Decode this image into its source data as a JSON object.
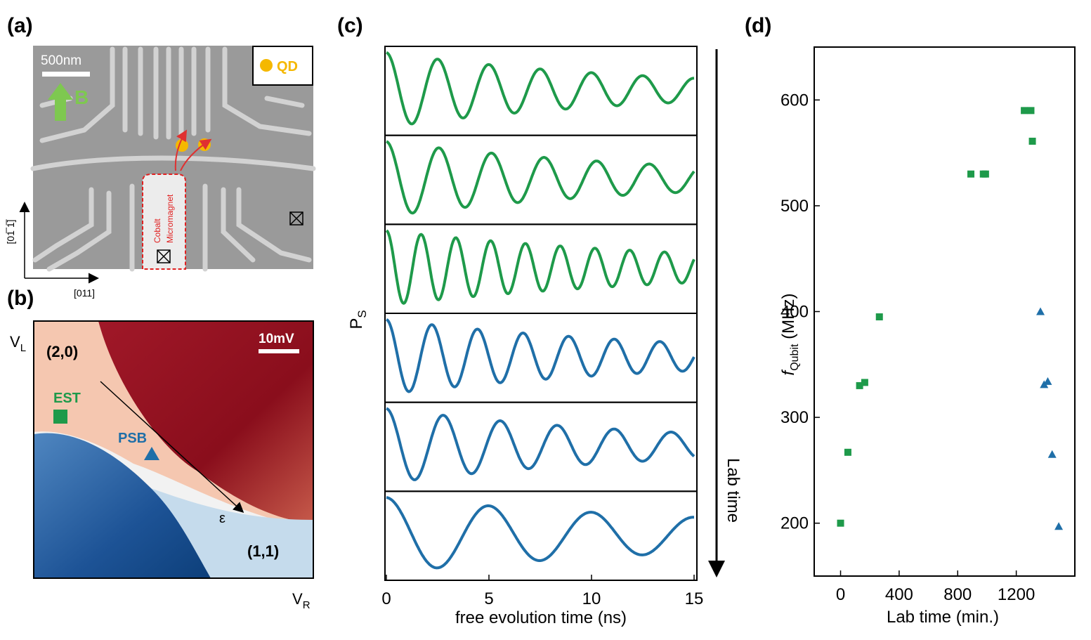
{
  "panel_labels": {
    "a": "(a)",
    "b": "(b)",
    "c": "(c)",
    "d": "(d)"
  },
  "panel_a": {
    "scale_bar": "500nm",
    "field_label": "B",
    "legend_qd": "QD",
    "magnet_label_1": "Cobalt",
    "magnet_label_2": "Micromagnet",
    "axis_vertical": "[01̅ 1̅]",
    "axis_horizontal": "[011]",
    "colors": {
      "sem_bg": "#9a9a9a",
      "gate": "#d2d2d2",
      "qd": "#f5b800",
      "arrow_green": "#7ec850",
      "magnet_outline": "#e02020"
    }
  },
  "panel_b": {
    "scale_bar": "10mV",
    "region_20": "(2,0)",
    "region_11": "(1,1)",
    "est_label": "EST",
    "psb_label": "PSB",
    "epsilon_label": "ε",
    "vl_main": "V",
    "vl_sub": "L",
    "vr_main": "V",
    "vr_sub": "R",
    "colors": {
      "dark_red": "#8c0f1e",
      "red": "#c0392b",
      "light": "#f5c7b0",
      "white": "#f2f2f2",
      "light_blue": "#c5dbec",
      "blue": "#2d6aa8",
      "dark_blue": "#0d3f7a",
      "est": "#1e9a4a",
      "psb": "#1f6fa8"
    }
  },
  "chart_data": [
    {
      "type": "line",
      "panel": "c",
      "xlabel": "free evolution time (ns)",
      "ylabel_main": "P",
      "ylabel_sub": "S",
      "side_label": "Lab time",
      "xlim": [
        0,
        15
      ],
      "xticks": [
        0,
        5,
        10,
        15
      ],
      "series": [
        {
          "color": "#1e9a4a",
          "freq_ghz": 0.4,
          "decay_ns": 13
        },
        {
          "color": "#1e9a4a",
          "freq_ghz": 0.39,
          "decay_ns": 14
        },
        {
          "color": "#1e9a4a",
          "freq_ghz": 0.59,
          "decay_ns": 16
        },
        {
          "color": "#1f6fa8",
          "freq_ghz": 0.45,
          "decay_ns": 15
        },
        {
          "color": "#1f6fa8",
          "freq_ghz": 0.36,
          "decay_ns": 14
        },
        {
          "color": "#1f6fa8",
          "freq_ghz": 0.2,
          "decay_ns": 20
        }
      ]
    },
    {
      "type": "scatter",
      "panel": "d",
      "xlabel": "Lab time (min.)",
      "ylabel_main": "f",
      "ylabel_sub": "Qubit",
      "ylabel_unit": " (MHz)",
      "xlim": [
        -180,
        1600
      ],
      "ylim": [
        150,
        650
      ],
      "xticks": [
        0,
        400,
        800,
        1200
      ],
      "yticks": [
        200,
        300,
        400,
        500,
        600
      ],
      "series": [
        {
          "marker": "square",
          "color": "#1e9a4a",
          "x": [
            0,
            50,
            130,
            165,
            265,
            890,
            975,
            990,
            1255,
            1300,
            1310
          ],
          "y": [
            200,
            267,
            330,
            333,
            395,
            530,
            530,
            530,
            590,
            590,
            561
          ]
        },
        {
          "marker": "triangle",
          "color": "#1f6fa8",
          "x": [
            1365,
            1390,
            1415,
            1445,
            1490
          ],
          "y": [
            400,
            331,
            334,
            265,
            197
          ]
        }
      ]
    }
  ]
}
